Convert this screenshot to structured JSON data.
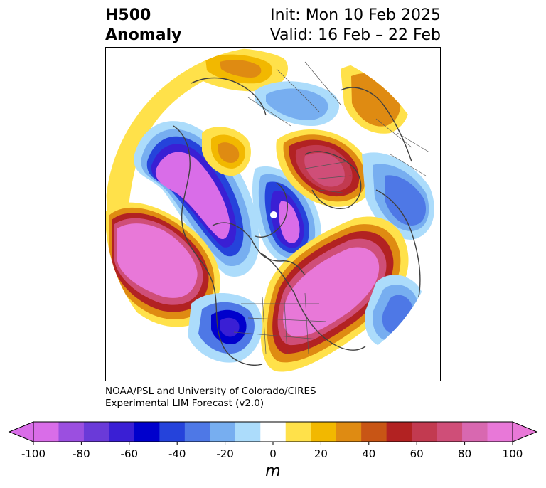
{
  "title": {
    "left_line1": "H500",
    "left_line2": "Anomaly",
    "init": "Init: Mon 10 Feb 2025",
    "valid": "Valid: 16 Feb – 22 Feb"
  },
  "credit": {
    "line1": "NOAA/PSL and University of Colorado/CIRES",
    "line2": "Experimental LIM Forecast (v2.0)"
  },
  "colorbar": {
    "unit": "m",
    "ticks": [
      "-100",
      "-80",
      "-60",
      "-40",
      "-20",
      "0",
      "20",
      "40",
      "60",
      "80",
      "100"
    ],
    "colors": [
      "#d96de8",
      "#9b4fe0",
      "#6a3ad8",
      "#3a1fd4",
      "#0000cc",
      "#2543db",
      "#4e78e6",
      "#77aef0",
      "#acdcfb",
      "#ffffff",
      "#ffe14a",
      "#f2b800",
      "#df8b12",
      "#c85515",
      "#b22222",
      "#c23a50",
      "#cf4e78",
      "#d868b0",
      "#e878d8"
    ],
    "under_color": "#d96de8",
    "over_color": "#e878d8"
  },
  "map": {
    "projection": "polar stereographic, Northern Hemisphere",
    "features": [
      "coastlines",
      "country borders",
      "state borders"
    ]
  }
}
